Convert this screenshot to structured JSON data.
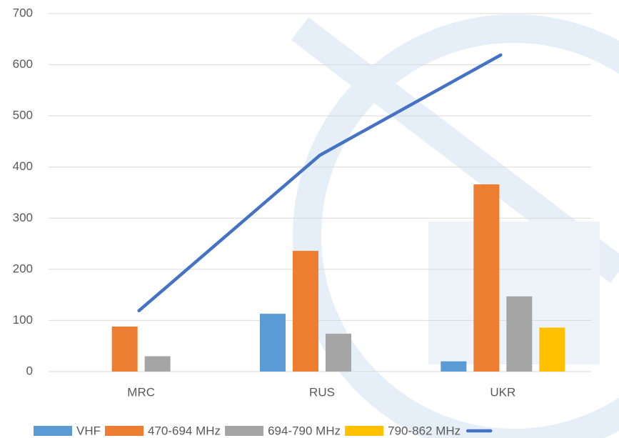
{
  "chart_data": {
    "type": "bar",
    "categories": [
      "MRC",
      "RUS",
      "UKR"
    ],
    "series": [
      {
        "name": "VHF",
        "color": "#5b9bd5",
        "values": [
          null,
          113,
          20
        ]
      },
      {
        "name": "470-694 MHz",
        "color": "#ed7d31",
        "values": [
          88,
          236,
          366
        ]
      },
      {
        "name": "694-790 MHz",
        "color": "#a5a5a5",
        "values": [
          30,
          74,
          147
        ]
      },
      {
        "name": "790-862 MHz",
        "color": "#ffc000",
        "values": [
          null,
          null,
          86
        ]
      },
      {
        "type": "line",
        "color": "#4472c4",
        "values": [
          119,
          423,
          619
        ]
      }
    ],
    "ylim": [
      0,
      700
    ],
    "yticks": [
      0,
      100,
      200,
      300,
      400,
      500,
      600,
      700
    ],
    "grid": true,
    "legend": "bottom"
  }
}
